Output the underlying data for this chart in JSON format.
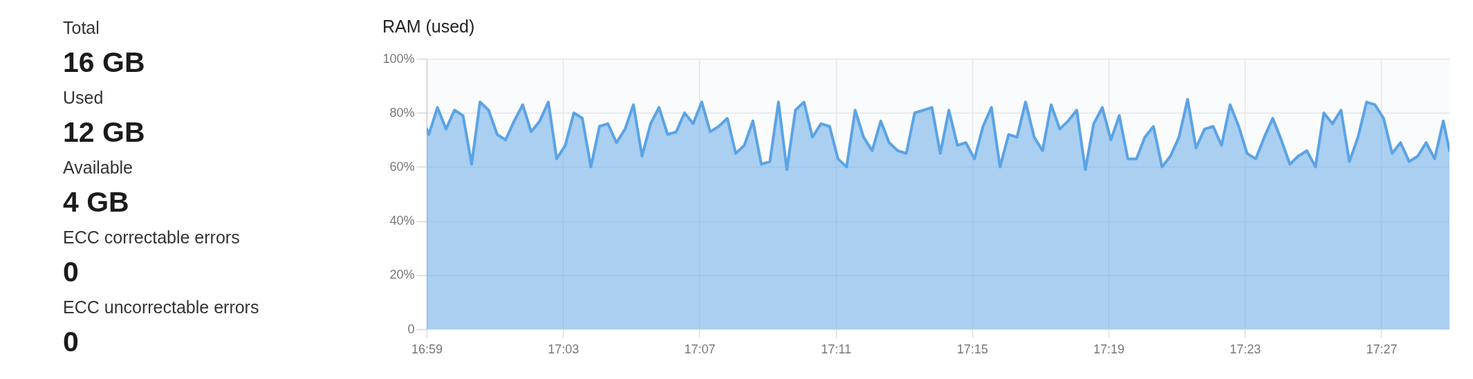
{
  "chart_data": [
    {
      "type": "other",
      "annotations": [
        "Total",
        "16 GB",
        "Used",
        "12 GB",
        "Available",
        "4 GB",
        "ECC correctable errors",
        "0",
        "ECC uncorrectable errors",
        "0"
      ]
    },
    {
      "type": "area",
      "title": "RAM (used)",
      "xlim": [
        16.98333,
        17.48333
      ],
      "xticks": [
        {
          "value": 16.98333,
          "label": "16:59"
        },
        {
          "value": 17.05,
          "label": "17:03"
        },
        {
          "value": 17.11667,
          "label": "17:07"
        },
        {
          "value": 17.18333,
          "label": "17:11"
        },
        {
          "value": 17.25,
          "label": "17:15"
        },
        {
          "value": 17.31667,
          "label": "17:19"
        },
        {
          "value": 17.38333,
          "label": "17:23"
        },
        {
          "value": 17.45,
          "label": "17:27"
        }
      ],
      "ylim": [
        0,
        100
      ],
      "yticks": [
        0,
        {
          "value": 20,
          "label": "20%"
        },
        {
          "value": 40,
          "label": "40%"
        },
        {
          "value": 60,
          "label": "60%"
        },
        {
          "value": 80,
          "label": "80%"
        },
        {
          "value": 100,
          "label": "100%"
        }
      ],
      "grid": true,
      "x": [
        16.98333,
        16.9844,
        16.9886,
        16.9928,
        16.9969,
        17.0011,
        17.0053,
        17.0094,
        17.0136,
        17.0178,
        17.0219,
        17.0261,
        17.0303,
        17.0344,
        17.0386,
        17.0428,
        17.0469,
        17.0511,
        17.0553,
        17.0594,
        17.0636,
        17.0678,
        17.0719,
        17.0761,
        17.0803,
        17.0844,
        17.0886,
        17.0928,
        17.0969,
        17.1011,
        17.1053,
        17.1094,
        17.1136,
        17.1178,
        17.1219,
        17.1261,
        17.1303,
        17.1344,
        17.1386,
        17.1428,
        17.1469,
        17.1511,
        17.1553,
        17.1594,
        17.1636,
        17.1678,
        17.1719,
        17.1761,
        17.1803,
        17.1844,
        17.1886,
        17.1928,
        17.1969,
        17.2011,
        17.2053,
        17.2094,
        17.2136,
        17.2178,
        17.2219,
        17.2261,
        17.2303,
        17.2344,
        17.2386,
        17.2428,
        17.2469,
        17.2511,
        17.2553,
        17.2594,
        17.2636,
        17.2678,
        17.2719,
        17.2761,
        17.2803,
        17.2844,
        17.2886,
        17.2928,
        17.2969,
        17.3011,
        17.3053,
        17.3094,
        17.3136,
        17.3178,
        17.3219,
        17.3261,
        17.3303,
        17.3344,
        17.3386,
        17.3428,
        17.3469,
        17.3511,
        17.3553,
        17.3594,
        17.3636,
        17.3678,
        17.3719,
        17.3761,
        17.3803,
        17.3844,
        17.3886,
        17.3928,
        17.3969,
        17.4011,
        17.4053,
        17.4094,
        17.4136,
        17.4178,
        17.4219,
        17.4261,
        17.4303,
        17.4344,
        17.4386,
        17.4428,
        17.4469,
        17.4511,
        17.4553,
        17.4594,
        17.4636,
        17.4678,
        17.4719,
        17.4761,
        17.4803,
        17.48333
      ],
      "series": [
        {
          "color": "#5aa3e6",
          "values": [
            74,
            72,
            82,
            74,
            81,
            79,
            61,
            84,
            81,
            72,
            70,
            77,
            83,
            73,
            77,
            84,
            63,
            68,
            80,
            78,
            60,
            75,
            76,
            69,
            74,
            83,
            64,
            76,
            82,
            72,
            73,
            80,
            76,
            84,
            73,
            75,
            78,
            65,
            68,
            77,
            61,
            62,
            84,
            59,
            81,
            84,
            71,
            76,
            75,
            63,
            60,
            81,
            71,
            66,
            77,
            69,
            66,
            65,
            80,
            81,
            82,
            65,
            81,
            68,
            69,
            63,
            75,
            82,
            60,
            72,
            71,
            84,
            71,
            66,
            83,
            74,
            77,
            81,
            59,
            76,
            82,
            70,
            79,
            63,
            63,
            71,
            75,
            60,
            64,
            71,
            85,
            67,
            74,
            75,
            68,
            83,
            75,
            65,
            63,
            71,
            78,
            70,
            61,
            64,
            66,
            60,
            80,
            76,
            81,
            62,
            71,
            84,
            83,
            78,
            65,
            69,
            62,
            64,
            69,
            63,
            77,
            66
          ]
        }
      ]
    }
  ]
}
